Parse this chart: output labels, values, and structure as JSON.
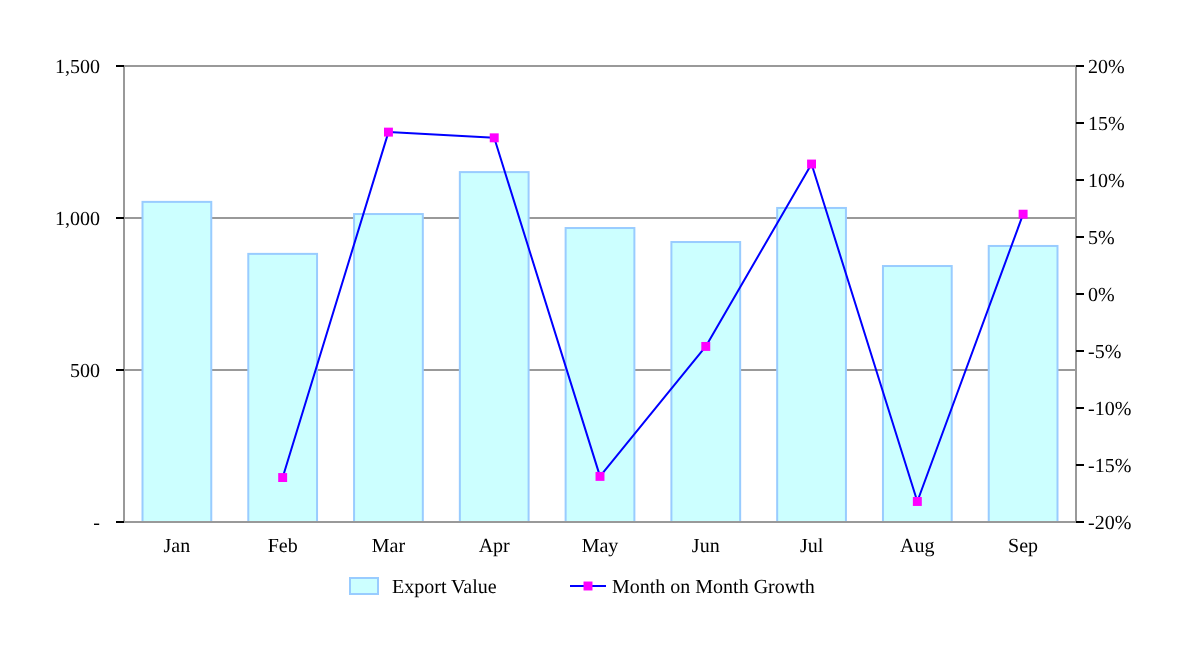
{
  "chart_data": {
    "type": "bar",
    "categories": [
      "Jan",
      "Feb",
      "Mar",
      "Apr",
      "May",
      "Jun",
      "Jul",
      "Aug",
      "Sep"
    ],
    "series": [
      {
        "name": "Export Value",
        "color": "#ccffff",
        "values": [
          1053,
          882,
          1013,
          1151,
          967,
          921,
          1033,
          842,
          908
        ]
      },
      {
        "name": "Month on Month Growth",
        "type": "line",
        "axis": "y2",
        "color": "#0000ff",
        "values": [
          null,
          -16.1,
          14.2,
          13.7,
          -16,
          -4.6,
          11.4,
          -18.2,
          7.0
        ]
      }
    ],
    "ylim": [
      0,
      1500
    ],
    "yticks": [
      {
        "value": 0,
        "label": "-"
      },
      {
        "value": 500,
        "label": "500"
      },
      {
        "value": 1000,
        "label": "1,000"
      },
      {
        "value": 1500,
        "label": "1,500"
      }
    ],
    "y2lim": [
      -20,
      20
    ],
    "y2ticks": [
      {
        "value": -20,
        "label": "-20%"
      },
      {
        "value": -15,
        "label": "-15%"
      },
      {
        "value": -10,
        "label": "-10%"
      },
      {
        "value": -5,
        "label": "-5%"
      },
      {
        "value": 0,
        "label": "0%"
      },
      {
        "value": 5,
        "label": "5%"
      },
      {
        "value": 10,
        "label": "10%"
      },
      {
        "value": 15,
        "label": "15%"
      },
      {
        "value": 20,
        "label": "20%"
      }
    ],
    "grid": "y",
    "legend": "bottom",
    "marker": "square"
  }
}
